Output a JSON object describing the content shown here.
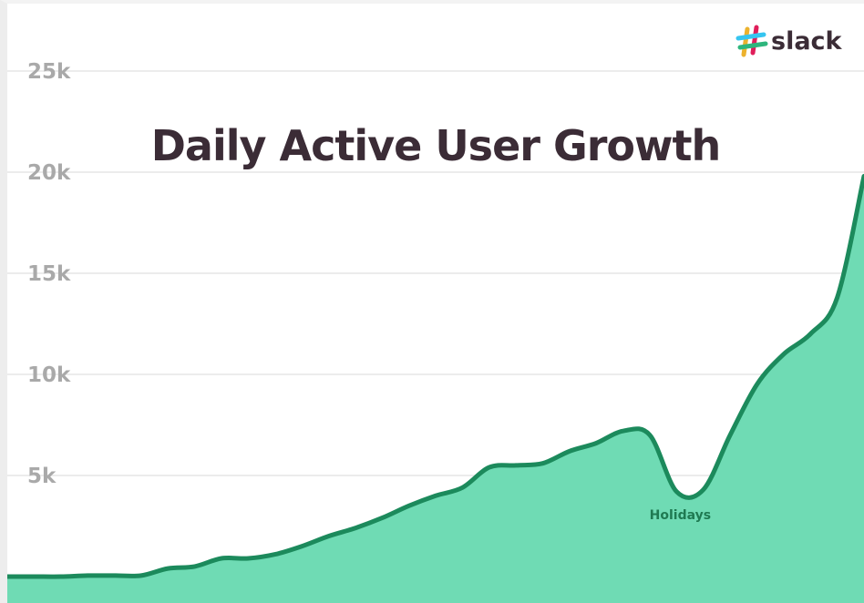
{
  "chart_data": {
    "type": "area",
    "title": "Daily Active User Growth",
    "xlabel": "",
    "ylabel": "",
    "ylim": [
      -500,
      27000
    ],
    "y_ticks": [
      {
        "value": 5000,
        "label": "5k"
      },
      {
        "value": 10000,
        "label": "10k"
      },
      {
        "value": 15000,
        "label": "15k"
      },
      {
        "value": 20000,
        "label": "20k"
      },
      {
        "value": 25000,
        "label": "25k"
      }
    ],
    "grid": true,
    "series": [
      {
        "values": [
          0,
          0,
          0,
          50,
          50,
          50,
          400,
          500,
          900,
          900,
          1100,
          1500,
          2000,
          2400,
          2900,
          3500,
          4000,
          4400,
          5400,
          5500,
          5600,
          6200,
          6600,
          7200,
          7000,
          4200,
          4300,
          7000,
          9500,
          11000,
          12000,
          13800,
          19800
        ],
        "color": "#6fdbb4",
        "line_color": "#1c8a5c"
      }
    ],
    "annotations": [
      {
        "text": "Holidays",
        "index": 25
      }
    ]
  },
  "brand": {
    "name": "slack",
    "colors": [
      "#e01e5a",
      "#36c5f0",
      "#2eb67d",
      "#ecb22e"
    ]
  },
  "colors": {
    "area_fill": "#6fdbb4",
    "line": "#1c8a5c",
    "grid": "#ececec",
    "tick_text": "#a9a9a9",
    "title_text": "#3b2c36"
  }
}
